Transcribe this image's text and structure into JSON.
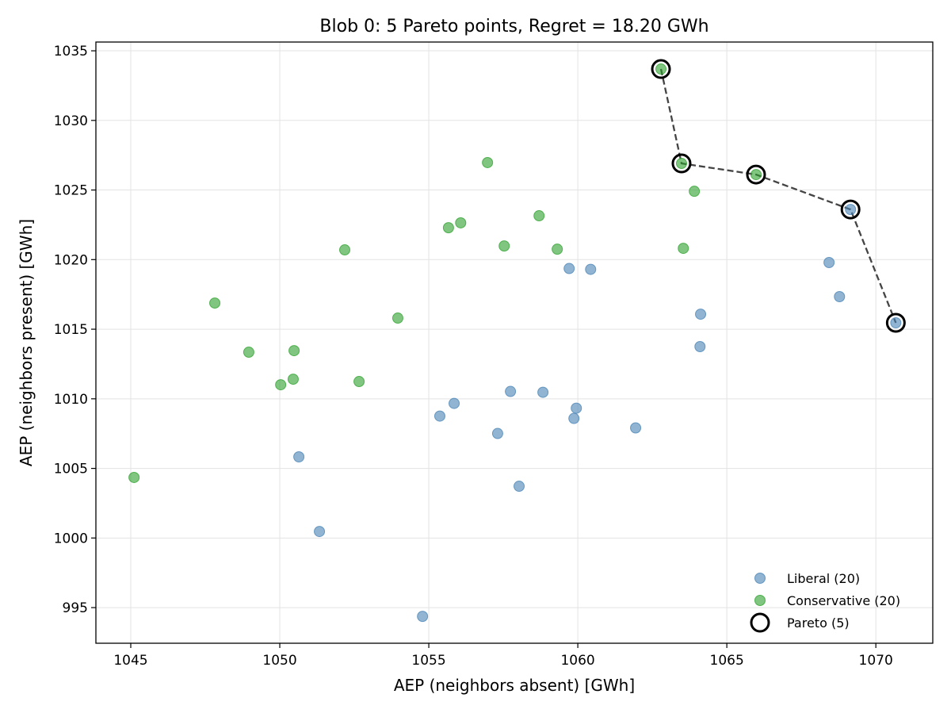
{
  "chart_data": {
    "type": "scatter",
    "title": "Blob 0: 5 Pareto points, Regret = 18.20 GWh",
    "xlabel": "AEP (neighbors absent) [GWh]",
    "ylabel": "AEP (neighbors present) [GWh]",
    "xlim": [
      1043.83,
      1071.91
    ],
    "ylim": [
      992.44,
      1035.63
    ],
    "xticks": [
      1045,
      1050,
      1055,
      1060,
      1065,
      1070
    ],
    "yticks": [
      995,
      1000,
      1005,
      1010,
      1015,
      1020,
      1025,
      1030,
      1035
    ],
    "grid": true,
    "legend_position": "lower-right",
    "colors": {
      "liberal": "#4682b4",
      "conservative": "#2ca02c",
      "pareto": "#000000",
      "frontier": "#444444"
    },
    "series": [
      {
        "name": "Liberal (20)",
        "key": "liberal",
        "points": [
          [
            1070.67,
            1015.46
          ],
          [
            1069.15,
            1023.6
          ],
          [
            1068.43,
            1019.79
          ],
          [
            1068.78,
            1017.34
          ],
          [
            1064.12,
            1016.08
          ],
          [
            1064.1,
            1013.75
          ],
          [
            1059.71,
            1019.36
          ],
          [
            1060.43,
            1019.3
          ],
          [
            1057.74,
            1010.53
          ],
          [
            1058.83,
            1010.47
          ],
          [
            1055.85,
            1009.67
          ],
          [
            1055.37,
            1008.76
          ],
          [
            1059.95,
            1009.33
          ],
          [
            1059.87,
            1008.59
          ],
          [
            1057.31,
            1007.51
          ],
          [
            1061.94,
            1007.91
          ],
          [
            1058.03,
            1003.72
          ],
          [
            1050.64,
            1005.83
          ],
          [
            1051.33,
            1000.47
          ],
          [
            1054.79,
            994.37
          ]
        ]
      },
      {
        "name": "Conservative (20)",
        "key": "conservative",
        "points": [
          [
            1062.79,
            1033.69
          ],
          [
            1063.48,
            1026.91
          ],
          [
            1065.98,
            1026.11
          ],
          [
            1063.91,
            1024.91
          ],
          [
            1063.54,
            1020.81
          ],
          [
            1056.97,
            1026.97
          ],
          [
            1058.7,
            1023.15
          ],
          [
            1056.07,
            1022.64
          ],
          [
            1055.66,
            1022.29
          ],
          [
            1057.53,
            1020.98
          ],
          [
            1059.31,
            1020.75
          ],
          [
            1052.18,
            1020.7
          ],
          [
            1053.96,
            1015.8
          ],
          [
            1047.82,
            1016.88
          ],
          [
            1048.96,
            1013.35
          ],
          [
            1050.48,
            1013.46
          ],
          [
            1050.45,
            1011.41
          ],
          [
            1050.03,
            1011.01
          ],
          [
            1052.66,
            1011.24
          ],
          [
            1045.11,
            1004.35
          ]
        ]
      },
      {
        "name": "Pareto (5)",
        "key": "pareto",
        "points": [
          [
            1062.79,
            1033.69
          ],
          [
            1063.48,
            1026.91
          ],
          [
            1065.98,
            1026.11
          ],
          [
            1069.15,
            1023.6
          ],
          [
            1070.67,
            1015.46
          ]
        ]
      }
    ]
  }
}
